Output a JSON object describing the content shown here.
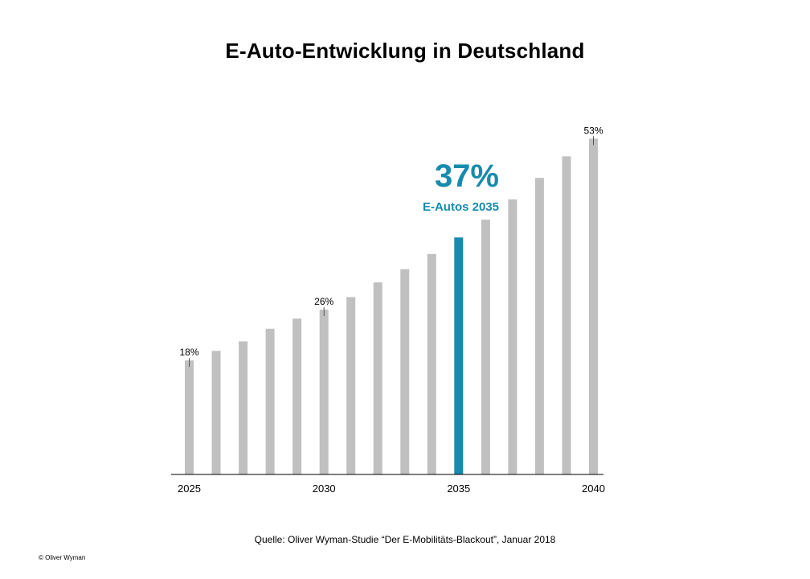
{
  "title": "E-Auto-Entwicklung in Deutschland",
  "source": "Quelle: Oliver Wyman-Studie “Der E-Mobilitäts-Blackout”, Januar 2018",
  "copyright": "© Oliver Wyman",
  "colors": {
    "bar": "#c0c0c0",
    "highlight": "#168bae",
    "axis": "#000000",
    "tick": "#555555"
  },
  "chart_data": {
    "type": "bar",
    "title": "E-Auto-Entwicklung in Deutschland",
    "x": [
      2025,
      2026,
      2027,
      2028,
      2029,
      2030,
      2031,
      2032,
      2033,
      2034,
      2035,
      2036,
      2037,
      2038,
      2039,
      2040
    ],
    "values": [
      18,
      19.5,
      21,
      23,
      24.6,
      26,
      28,
      30.3,
      32.4,
      34.8,
      37.4,
      40.2,
      43.4,
      46.8,
      50.2,
      53
    ],
    "unit": "%",
    "x_tick_labels": [
      "2025",
      "2030",
      "2035",
      "2040"
    ],
    "ylim": [
      0,
      57
    ],
    "grid": false,
    "highlight": {
      "x": 2035,
      "value": 37,
      "big_label": "37%",
      "sub_label": "E-Autos 2035"
    },
    "data_labels": [
      {
        "x": 2025,
        "text": "18%"
      },
      {
        "x": 2030,
        "text": "26%"
      },
      {
        "x": 2040,
        "text": "53%"
      }
    ]
  }
}
